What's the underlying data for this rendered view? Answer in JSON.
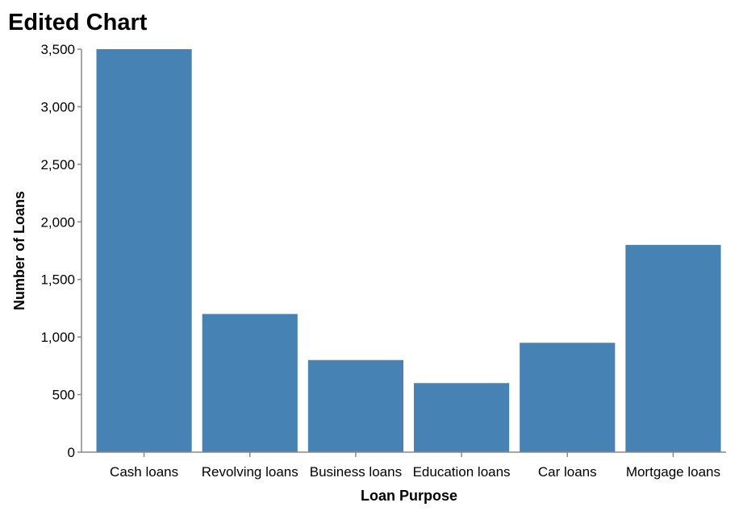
{
  "chart_data": {
    "type": "bar",
    "title": "Edited Chart",
    "xlabel": "Loan Purpose",
    "ylabel": "Number of Loans",
    "categories": [
      "Cash loans",
      "Revolving loans",
      "Business loans",
      "Education loans",
      "Car loans",
      "Mortgage loans"
    ],
    "values": [
      3500,
      1200,
      800,
      600,
      950,
      1800
    ],
    "ylim": [
      0,
      3500
    ],
    "yticks": [
      0,
      500,
      1000,
      1500,
      2000,
      2500,
      3000,
      3500
    ],
    "ytick_labels": [
      "0",
      "500",
      "1,000",
      "1,500",
      "2,000",
      "2,500",
      "3,000",
      "3,500"
    ],
    "grid": false,
    "bar_color": "#4682b4"
  }
}
